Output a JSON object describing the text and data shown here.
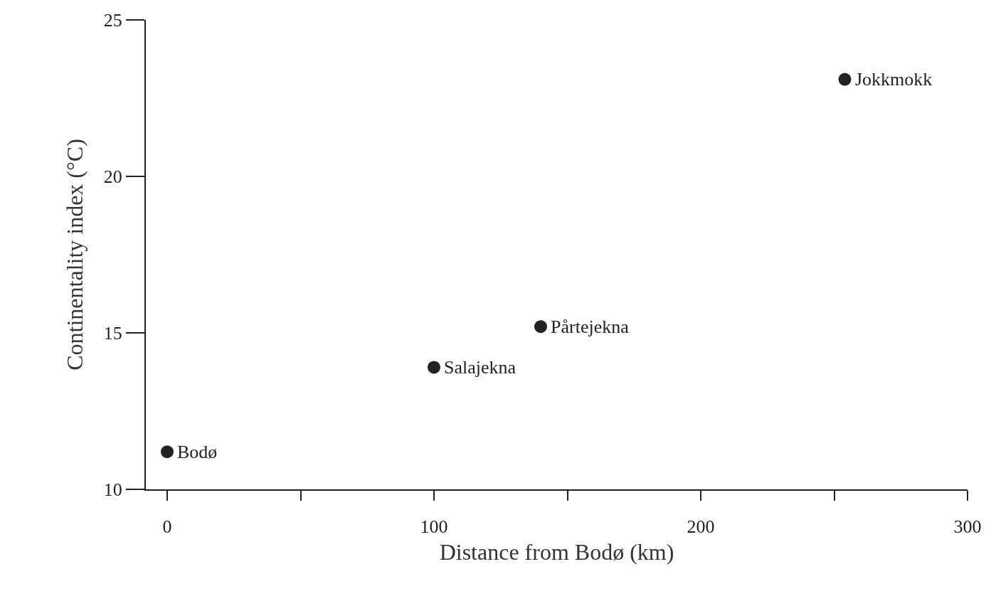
{
  "chart_data": {
    "type": "scatter",
    "xlabel": "Distance from Bodø (km)",
    "ylabel": "Continentality index (°C)",
    "x": [
      0,
      100,
      140,
      254
    ],
    "values": [
      11.2,
      13.9,
      15.2,
      23.1
    ],
    "color": "#222222",
    "marker": "circle",
    "grid": false,
    "xlim": [
      -8,
      300
    ],
    "xticks": [
      0,
      {
        "value": 50,
        "label": null
      },
      100,
      {
        "value": 150,
        "label": null
      },
      200,
      {
        "value": 250,
        "label": null
      },
      300
    ],
    "ylim": [
      10,
      25
    ],
    "yticks": [
      10,
      15,
      20,
      25
    ],
    "annotations": [
      {
        "text": "Bodø",
        "x": 0,
        "y": 11.2
      },
      {
        "text": "Salajekna",
        "x": 100,
        "y": 13.9
      },
      {
        "text": "Pårtejekna",
        "x": 140,
        "y": 15.2
      },
      {
        "text": "Jokkmokk",
        "x": 254,
        "y": 23.1
      }
    ]
  }
}
